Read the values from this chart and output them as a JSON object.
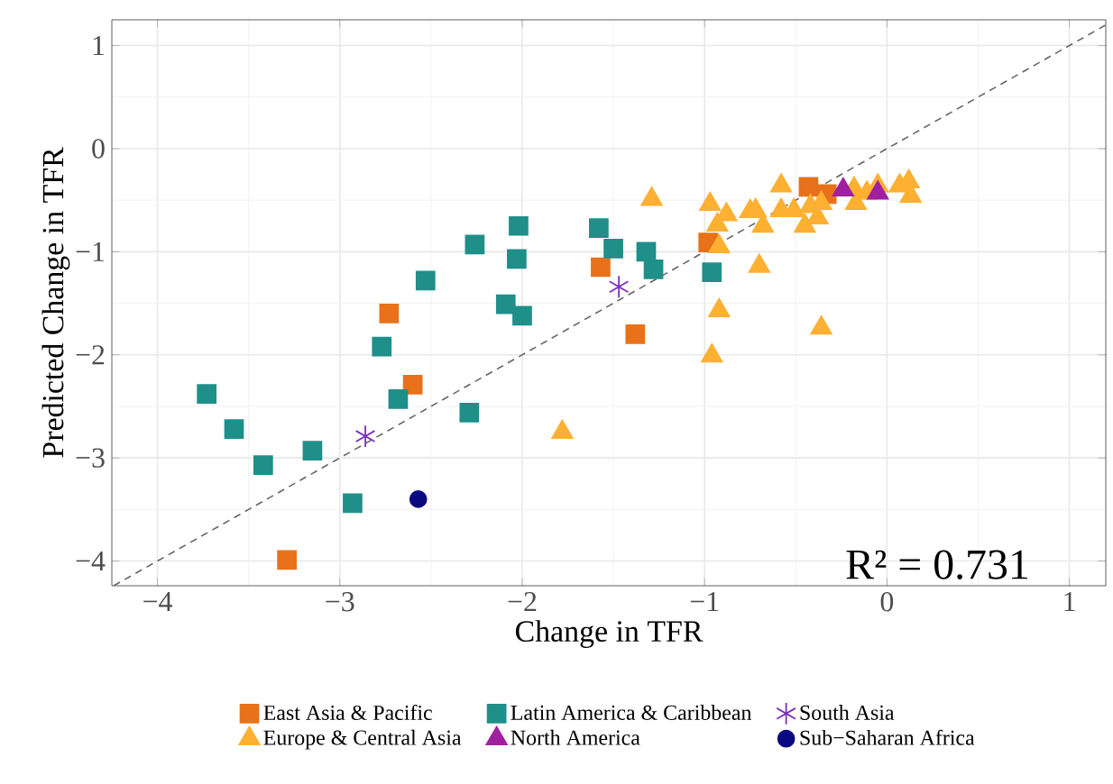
{
  "chart_data": {
    "type": "scatter",
    "xlabel": "Change in TFR",
    "ylabel": "Predicted Change in TFR",
    "xlim": [
      -4.25,
      1.2
    ],
    "ylim": [
      -4.24,
      1.25
    ],
    "xticks": [
      {
        "value": -4,
        "label": "−4"
      },
      {
        "value": -3,
        "label": "−3"
      },
      {
        "value": -2,
        "label": "−2"
      },
      {
        "value": -1,
        "label": "−1"
      },
      0,
      1
    ],
    "yticks": [
      {
        "value": -4,
        "label": "−4"
      },
      {
        "value": -3,
        "label": "−3"
      },
      {
        "value": -2,
        "label": "−2"
      },
      {
        "value": -1,
        "label": "−1"
      },
      0,
      1
    ],
    "grid": true,
    "legend": "bottom",
    "annotations": [
      "R² = 0.731"
    ],
    "series": [
      {
        "name": "East Asia & Pacific",
        "color": "#e8711a",
        "marker": "square",
        "x": [
          -3.29,
          -2.73,
          -2.6,
          -1.57,
          -1.38,
          -0.98,
          -0.43,
          -0.33
        ],
        "values": [
          -3.99,
          -1.6,
          -2.29,
          -1.15,
          -1.8,
          -0.91,
          -0.37,
          -0.44
        ]
      },
      {
        "name": "Europe & Central Asia",
        "color": "#fdb031",
        "marker": "triangle",
        "x": [
          -1.29,
          -0.97,
          -0.92,
          -0.92,
          -0.96,
          -0.7,
          -0.36,
          -1.78,
          -0.88,
          -0.93,
          -0.75,
          -0.72,
          -0.68,
          -0.58,
          -0.58,
          -0.51,
          -0.45,
          -0.42,
          -0.38,
          -0.36,
          -0.18,
          -0.17,
          -0.05,
          0.07,
          0.12,
          0.13,
          -0.11
        ],
        "values": [
          -0.49,
          -0.54,
          -0.95,
          -1.57,
          -2.01,
          -1.14,
          -1.74,
          -2.75,
          -0.64,
          -0.74,
          -0.61,
          -0.6,
          -0.75,
          -0.36,
          -0.6,
          -0.6,
          -0.75,
          -0.56,
          -0.67,
          -0.53,
          -0.39,
          -0.53,
          -0.36,
          -0.36,
          -0.32,
          -0.46,
          -0.43
        ]
      },
      {
        "name": "Latin America & Caribbean",
        "color": "#1f8f89",
        "marker": "square",
        "x": [
          -3.73,
          -3.58,
          -3.42,
          -3.15,
          -2.93,
          -2.77,
          -2.68,
          -2.53,
          -2.26,
          -2.29,
          -2.09,
          -2.03,
          -2.02,
          -2.0,
          -1.58,
          -1.5,
          -1.32,
          -1.28,
          -0.96
        ],
        "values": [
          -2.38,
          -2.72,
          -3.07,
          -2.93,
          -3.44,
          -1.92,
          -2.43,
          -1.28,
          -0.93,
          -2.56,
          -1.51,
          -1.07,
          -0.75,
          -1.62,
          -0.77,
          -0.97,
          -1.0,
          -1.17,
          -1.2
        ]
      },
      {
        "name": "North America",
        "color": "#a020a0",
        "marker": "triangle",
        "x": [
          -0.24,
          -0.05
        ],
        "values": [
          -0.4,
          -0.43
        ]
      },
      {
        "name": "South Asia",
        "color": "#7b2fbe",
        "marker": "cross",
        "x": [
          -2.86,
          -1.47
        ],
        "values": [
          -2.79,
          -1.34
        ]
      },
      {
        "name": "Sub−Saharan Africa",
        "color": "#0a0a80",
        "marker": "circle",
        "x": [
          -2.57
        ],
        "values": [
          -3.4
        ]
      },
      {
        "type": "line",
        "color": "#666666",
        "line_style": "dashed",
        "marker": "none",
        "x": [
          -4.24,
          1.2
        ],
        "values": [
          -4.24,
          1.2
        ]
      }
    ]
  }
}
